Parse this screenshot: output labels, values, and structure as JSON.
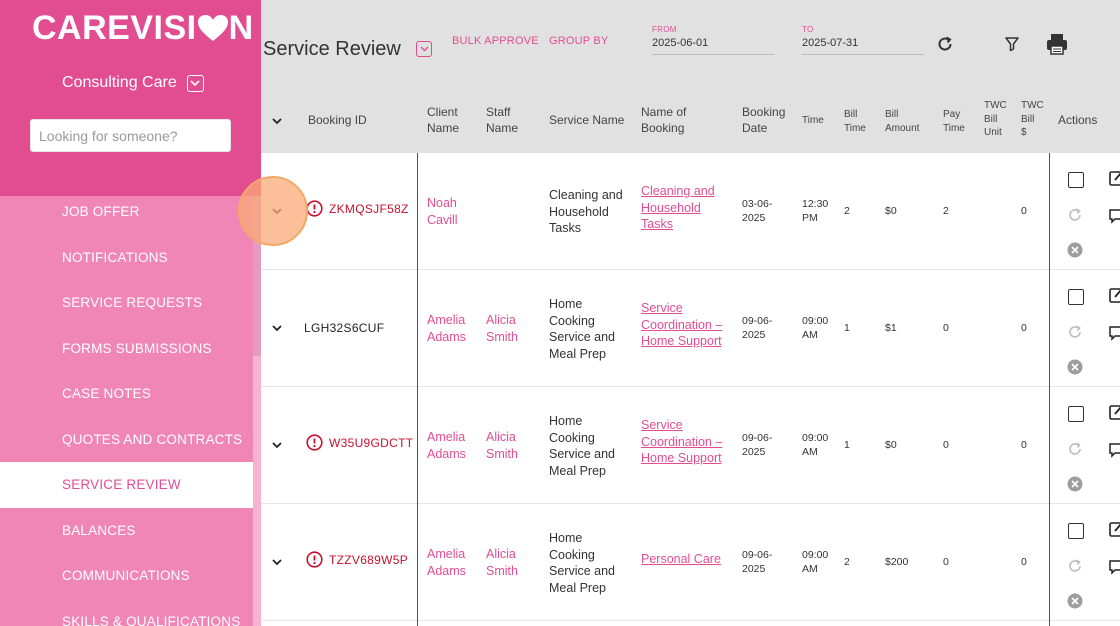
{
  "brand": {
    "logo_text_a": "CAREVISI",
    "logo_text_b": "N"
  },
  "sidebar": {
    "org_name": "Consulting Care",
    "search_placeholder": "Looking for someone?",
    "items": [
      {
        "label": "JOB OFFER"
      },
      {
        "label": "NOTIFICATIONS"
      },
      {
        "label": "SERVICE REQUESTS"
      },
      {
        "label": "FORMS SUBMISSIONS"
      },
      {
        "label": "CASE NOTES"
      },
      {
        "label": "QUOTES AND CONTRACTS"
      },
      {
        "label": "SERVICE REVIEW",
        "active": true
      },
      {
        "label": "BALANCES"
      },
      {
        "label": "COMMUNICATIONS"
      },
      {
        "label": "SKILLS & QUALIFICATIONS"
      }
    ]
  },
  "header": {
    "title": "Service Review",
    "bulk_approve": "BULK APPROVE",
    "group_by": "GROUP BY",
    "from_label": "FROM",
    "from_value": "2025-06-01",
    "to_label": "TO",
    "to_value": "2025-07-31"
  },
  "columns": {
    "booking_id": "Booking ID",
    "client_name_1": "Client",
    "client_name_2": "Name",
    "staff_name_1": "Staff",
    "staff_name_2": "Name",
    "service_name": "Service Name",
    "name_booking_1": "Name of",
    "name_booking_2": "Booking",
    "booking_date_1": "Booking",
    "booking_date_2": "Date",
    "time": "Time",
    "bill_time_1": "Bill",
    "bill_time_2": "Time",
    "bill_amount_1": "Bill",
    "bill_amount_2": "Amount",
    "pay_time_1": "Pay",
    "pay_time_2": "Time",
    "twc_unit_1": "TWC",
    "twc_unit_2": "Bill",
    "twc_unit_3": "Unit",
    "twc_bill_1": "TWC",
    "twc_bill_2": "Bill",
    "twc_bill_3": "$",
    "actions": "Actions"
  },
  "rows": [
    {
      "booking_id": "ZKMQSJF58Z",
      "warning": true,
      "client_1": "Noah",
      "client_2": "Cavill",
      "staff_1": "",
      "staff_2": "",
      "service_1": "Cleaning and",
      "service_2": "Household",
      "service_3": "Tasks",
      "service_4": "",
      "booking_1": "Cleaning and",
      "booking_2": "Household",
      "booking_3": "Tasks",
      "date_1": "03-06-",
      "date_2": "2025",
      "time_1": "12:30",
      "time_2": "PM",
      "bill_time": "2",
      "bill_amount": "$0",
      "pay_time": "2",
      "twc_unit": "",
      "twc_bill": "0"
    },
    {
      "booking_id": "LGH32S6CUF",
      "warning": false,
      "client_1": "Amelia",
      "client_2": "Adams",
      "staff_1": "Alicia",
      "staff_2": "Smith",
      "service_1": "Home",
      "service_2": "Cooking",
      "service_3": "Service and",
      "service_4": "Meal Prep",
      "booking_1": "Service",
      "booking_2": "Coordination –",
      "booking_3": "Home Support",
      "date_1": "09-06-",
      "date_2": "2025",
      "time_1": "09:00",
      "time_2": "AM",
      "bill_time": "1",
      "bill_amount": "$1",
      "pay_time": "0",
      "twc_unit": "",
      "twc_bill": "0"
    },
    {
      "booking_id": "W35U9GDCTT",
      "warning": true,
      "client_1": "Amelia",
      "client_2": "Adams",
      "staff_1": "Alicia",
      "staff_2": "Smith",
      "service_1": "Home",
      "service_2": "Cooking",
      "service_3": "Service and",
      "service_4": "Meal Prep",
      "booking_1": "Service",
      "booking_2": "Coordination –",
      "booking_3": "Home Support",
      "date_1": "09-06-",
      "date_2": "2025",
      "time_1": "09:00",
      "time_2": "AM",
      "bill_time": "1",
      "bill_amount": "$0",
      "pay_time": "0",
      "twc_unit": "",
      "twc_bill": "0"
    },
    {
      "booking_id": "TZZV689W5P",
      "warning": true,
      "client_1": "Amelia",
      "client_2": "Adams",
      "staff_1": "Alicia",
      "staff_2": "Smith",
      "service_1": "Home",
      "service_2": "Cooking",
      "service_3": "Service and",
      "service_4": "Meal Prep",
      "booking_1": "Personal Care",
      "booking_2": "",
      "booking_3": "",
      "date_1": "09-06-",
      "date_2": "2025",
      "time_1": "09:00",
      "time_2": "AM",
      "bill_time": "2",
      "bill_amount": "$200",
      "pay_time": "0",
      "twc_unit": "",
      "twc_bill": "0"
    }
  ]
}
